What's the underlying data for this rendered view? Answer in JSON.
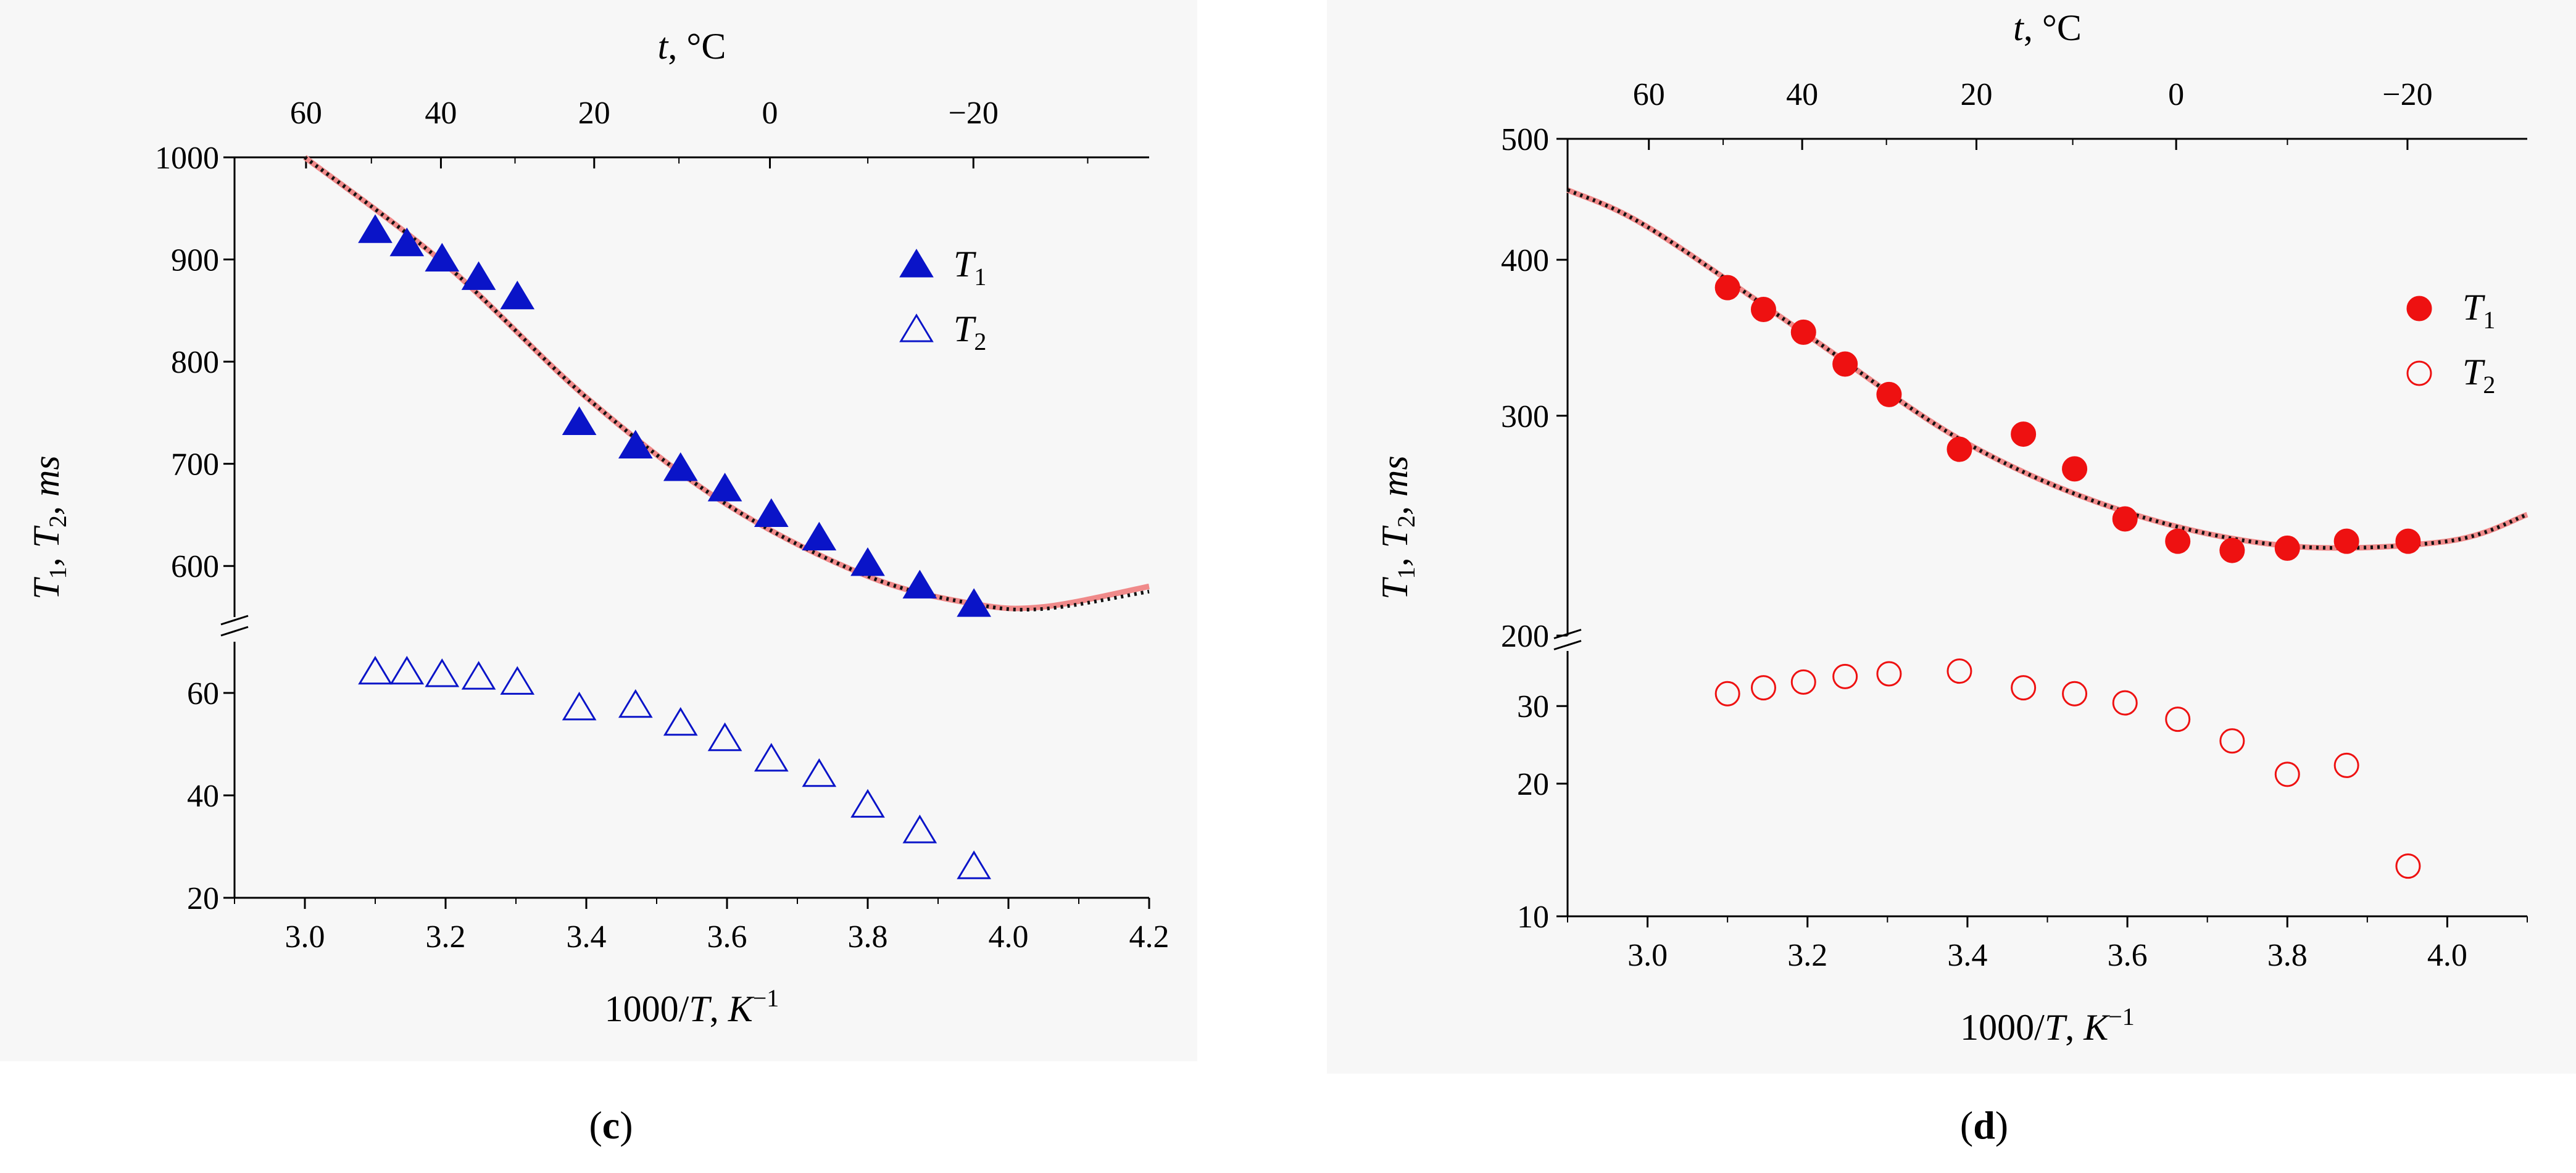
{
  "chart_data": [
    {
      "type": "scatter",
      "panel_label": "(c)",
      "top_axis_label": "t, °C",
      "top_ticks": [
        "60",
        "40",
        "20",
        "0",
        "−20"
      ],
      "top_tick_values": [
        60,
        40,
        20,
        0,
        -20
      ],
      "xlabel": "1000/T, K",
      "xlabel_superscript": "−1",
      "ylabel": "T1, T2, ms",
      "xlim": [
        2.9,
        4.2
      ],
      "x_ticks": [
        "3.0",
        "3.2",
        "3.4",
        "3.6",
        "3.8",
        "4.0",
        "4.2"
      ],
      "upper_segment": {
        "ylim": [
          550,
          1000
        ],
        "y_ticks": [
          "1000",
          "900",
          "800",
          "700",
          "600"
        ]
      },
      "lower_segment": {
        "ylim": [
          20,
          70
        ],
        "y_ticks": [
          "60",
          "40",
          "20"
        ]
      },
      "legend": {
        "position": "right",
        "entries": [
          {
            "label": "T",
            "subscript": "1",
            "marker": "filled-triangle"
          },
          {
            "label": "T",
            "subscript": "2",
            "marker": "open-triangle"
          }
        ]
      },
      "color": "#0a14c8",
      "series": [
        {
          "name": "T1",
          "x": [
            3.1,
            3.145,
            3.195,
            3.247,
            3.302,
            3.39,
            3.47,
            3.534,
            3.597,
            3.663,
            3.731,
            3.8,
            3.874,
            3.951
          ],
          "y": [
            928,
            915,
            900,
            882,
            863,
            740,
            717,
            695,
            675,
            650,
            627,
            602,
            580,
            562
          ]
        },
        {
          "name": "T2",
          "x": [
            3.1,
            3.145,
            3.195,
            3.247,
            3.302,
            3.39,
            3.47,
            3.534,
            3.597,
            3.663,
            3.731,
            3.8,
            3.874,
            3.951
          ],
          "y": [
            64,
            64,
            63.5,
            63,
            62,
            57,
            57.5,
            54,
            51,
            47,
            44,
            38,
            33,
            26
          ]
        },
        {
          "name": "fit-solid",
          "x": [
            3.0,
            3.2,
            3.4,
            3.6,
            3.8,
            3.95,
            4.05,
            4.2
          ],
          "y": [
            1000,
            895,
            765,
            660,
            590,
            563,
            560,
            580
          ]
        },
        {
          "name": "fit-dotted",
          "x": [
            3.0,
            3.2,
            3.4,
            3.6,
            3.8,
            3.95,
            4.05,
            4.2
          ],
          "y": [
            1000,
            895,
            765,
            660,
            590,
            563,
            558,
            575
          ]
        }
      ]
    },
    {
      "type": "scatter",
      "panel_label": "(d)",
      "top_axis_label": "t, °C",
      "top_ticks": [
        "60",
        "40",
        "20",
        "0",
        "−20"
      ],
      "top_tick_values": [
        60,
        40,
        20,
        0,
        -20
      ],
      "xlabel": "1000/T, K",
      "xlabel_superscript": "−1",
      "ylabel": "T1, T2, ms",
      "xlim": [
        2.9,
        4.1
      ],
      "x_ticks": [
        "3.0",
        "3.2",
        "3.4",
        "3.6",
        "3.8",
        "4.0"
      ],
      "upper_segment": {
        "ylim": [
          200,
          500
        ],
        "scale": "log",
        "y_ticks": [
          "500",
          "400",
          "300",
          "200"
        ]
      },
      "lower_segment": {
        "ylim": [
          10,
          40
        ],
        "scale": "log",
        "y_ticks": [
          "30",
          "20",
          "10"
        ]
      },
      "legend": {
        "position": "right",
        "entries": [
          {
            "label": "T",
            "subscript": "1",
            "marker": "filled-circle"
          },
          {
            "label": "T",
            "subscript": "2",
            "marker": "open-circle"
          }
        ]
      },
      "color": "#ee1111",
      "series": [
        {
          "name": "T1",
          "x": [
            3.1,
            3.145,
            3.195,
            3.247,
            3.302,
            3.39,
            3.47,
            3.534,
            3.597,
            3.663,
            3.731,
            3.8,
            3.874,
            3.951
          ],
          "y": [
            380,
            365,
            350,
            330,
            312,
            282,
            290,
            272,
            248,
            238,
            234,
            235,
            238,
            238
          ]
        },
        {
          "name": "T2",
          "x": [
            3.1,
            3.145,
            3.195,
            3.247,
            3.302,
            3.39,
            3.47,
            3.534,
            3.597,
            3.663,
            3.731,
            3.8,
            3.874,
            3.951
          ],
          "y": [
            32,
            33,
            34,
            35,
            35.5,
            36,
            33,
            32,
            30.5,
            28,
            25,
            21,
            22,
            13
          ]
        },
        {
          "name": "fit-solid",
          "x": [
            2.9,
            3.0,
            3.2,
            3.4,
            3.6,
            3.8,
            4.0,
            4.1
          ],
          "y": [
            455,
            425,
            348,
            285,
            251,
            236,
            238,
            250
          ]
        },
        {
          "name": "fit-dotted",
          "x": [
            2.9,
            3.0,
            3.2,
            3.4,
            3.6,
            3.8,
            4.0,
            4.1
          ],
          "y": [
            455,
            425,
            348,
            285,
            251,
            236,
            238,
            250
          ]
        }
      ]
    }
  ]
}
